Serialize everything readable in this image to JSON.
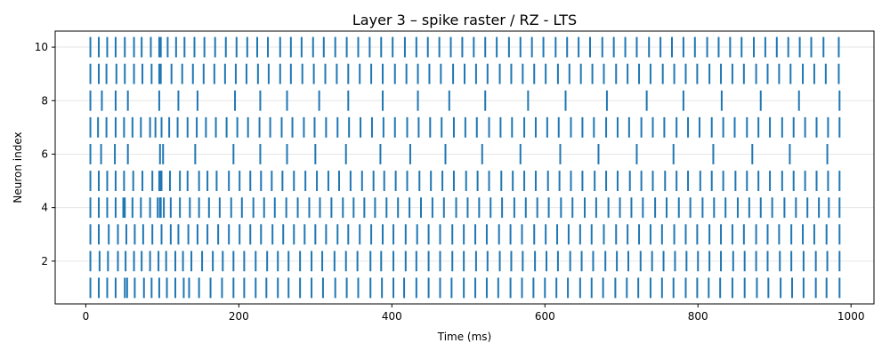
{
  "chart_data": {
    "type": "scatter",
    "subtype": "raster",
    "title": "Layer 3 – spike raster / RZ - LTS",
    "xlabel": "Time (ms)",
    "ylabel": "Neuron index",
    "xlim": [
      -40,
      1030
    ],
    "ylim": [
      0.4,
      10.6
    ],
    "xticks": [
      0,
      200,
      400,
      600,
      800,
      1000
    ],
    "yticks": [
      2,
      4,
      6,
      8,
      10
    ],
    "grid": "horizontal",
    "colors": {
      "spike": "#1f77b4",
      "grid": "#e6e6e6",
      "axis": "#000000"
    },
    "series": [
      {
        "neuron": 1,
        "spikes": [
          6,
          17,
          28,
          39,
          51,
          54,
          64,
          76,
          86,
          96,
          106,
          117,
          128,
          135,
          148,
          163,
          178,
          193,
          207,
          222,
          236,
          251,
          265,
          280,
          295,
          310,
          326,
          341,
          356,
          372,
          387,
          402,
          416,
          432,
          448,
          463,
          478,
          494,
          509,
          524,
          539,
          555,
          570,
          585,
          600,
          615,
          630,
          646,
          661,
          676,
          692,
          707,
          722,
          738,
          753,
          768,
          784,
          799,
          814,
          829,
          845,
          861,
          877,
          892,
          908,
          923,
          938,
          954,
          968,
          985
        ]
      },
      {
        "neuron": 2,
        "spikes": [
          6,
          18,
          29,
          42,
          52,
          63,
          73,
          84,
          95,
          105,
          117,
          127,
          138,
          152,
          166,
          179,
          193,
          207,
          222,
          237,
          251,
          265,
          280,
          295,
          309,
          325,
          340,
          355,
          372,
          386,
          402,
          418,
          432,
          448,
          463,
          479,
          494,
          510,
          525,
          541,
          556,
          571,
          587,
          602,
          617,
          633,
          648,
          663,
          679,
          694,
          709,
          725,
          740,
          755,
          770,
          785,
          800,
          815,
          830,
          846,
          861,
          876,
          891,
          907,
          922,
          938,
          954,
          969,
          985
        ]
      },
      {
        "neuron": 3,
        "spikes": [
          6,
          17,
          30,
          42,
          53,
          64,
          75,
          87,
          99,
          111,
          121,
          134,
          146,
          159,
          173,
          187,
          201,
          215,
          229,
          244,
          258,
          272,
          286,
          300,
          314,
          329,
          343,
          358,
          373,
          388,
          402,
          418,
          433,
          448,
          463,
          479,
          494,
          509,
          524,
          540,
          555,
          570,
          586,
          601,
          616,
          631,
          646,
          661,
          677,
          693,
          708,
          723,
          738,
          753,
          769,
          784,
          799,
          815,
          830,
          845,
          860,
          876,
          891,
          906,
          922,
          937,
          952,
          968,
          985
        ]
      },
      {
        "neuron": 4,
        "spikes": [
          6,
          17,
          28,
          39,
          49,
          51,
          61,
          72,
          84,
          94,
          97,
          98,
          102,
          111,
          123,
          136,
          148,
          161,
          175,
          190,
          204,
          219,
          233,
          247,
          262,
          277,
          292,
          306,
          321,
          336,
          350,
          364,
          378,
          393,
          408,
          423,
          438,
          453,
          468,
          484,
          499,
          514,
          529,
          544,
          560,
          575,
          590,
          605,
          621,
          636,
          652,
          667,
          683,
          698,
          713,
          728,
          744,
          759,
          775,
          790,
          806,
          821,
          836,
          852,
          867,
          882,
          897,
          913,
          928,
          943,
          958,
          971,
          985
        ]
      },
      {
        "neuron": 5,
        "spikes": [
          6,
          17,
          28,
          39,
          50,
          62,
          74,
          87,
          96,
          98,
          99,
          110,
          123,
          133,
          148,
          159,
          171,
          187,
          201,
          215,
          229,
          243,
          257,
          272,
          287,
          302,
          317,
          331,
          346,
          361,
          376,
          390,
          405,
          420,
          436,
          451,
          466,
          481,
          497,
          512,
          527,
          543,
          558,
          573,
          588,
          604,
          619,
          634,
          649,
          665,
          680,
          695,
          711,
          726,
          741,
          757,
          772,
          787,
          803,
          818,
          833,
          849,
          864,
          879,
          894,
          910,
          925,
          940,
          955,
          970,
          985
        ]
      },
      {
        "neuron": 6,
        "spikes": [
          6,
          20,
          38,
          55,
          97,
          101,
          143,
          193,
          228,
          263,
          300,
          340,
          385,
          424,
          470,
          518,
          568,
          620,
          670,
          720,
          768,
          820,
          871,
          920,
          969
        ]
      },
      {
        "neuron": 7,
        "spikes": [
          6,
          16,
          27,
          39,
          50,
          61,
          72,
          84,
          91,
          99,
          109,
          120,
          133,
          145,
          157,
          170,
          184,
          198,
          212,
          227,
          241,
          256,
          270,
          285,
          299,
          314,
          329,
          344,
          359,
          374,
          389,
          404,
          420,
          435,
          450,
          465,
          481,
          496,
          511,
          527,
          542,
          557,
          573,
          588,
          603,
          618,
          634,
          649,
          664,
          680,
          695,
          710,
          726,
          741,
          756,
          772,
          787,
          802,
          818,
          833,
          848,
          864,
          879,
          894,
          910,
          925,
          940,
          955,
          970,
          985
        ]
      },
      {
        "neuron": 8,
        "spikes": [
          6,
          21,
          39,
          55,
          96,
          121,
          146,
          195,
          228,
          263,
          305,
          343,
          388,
          434,
          475,
          522,
          578,
          627,
          681,
          733,
          781,
          831,
          882,
          932,
          985
        ]
      },
      {
        "neuron": 9,
        "spikes": [
          6,
          17,
          27,
          40,
          51,
          63,
          74,
          86,
          96,
          98,
          112,
          126,
          140,
          154,
          168,
          182,
          196,
          210,
          225,
          239,
          254,
          268,
          283,
          298,
          313,
          328,
          343,
          358,
          373,
          388,
          404,
          419,
          434,
          449,
          464,
          480,
          495,
          510,
          525,
          541,
          556,
          571,
          586,
          601,
          617,
          632,
          647,
          662,
          677,
          693,
          708,
          723,
          738,
          754,
          769,
          784,
          799,
          815,
          830,
          845,
          860,
          876,
          891,
          906,
          921,
          937,
          952,
          967,
          984
        ]
      },
      {
        "neuron": 10,
        "spikes": [
          6,
          17,
          28,
          39,
          51,
          63,
          73,
          85,
          96,
          98,
          107,
          118,
          129,
          142,
          155,
          169,
          183,
          197,
          211,
          224,
          238,
          254,
          268,
          282,
          297,
          311,
          326,
          341,
          356,
          371,
          386,
          401,
          417,
          432,
          447,
          462,
          477,
          492,
          507,
          522,
          537,
          553,
          568,
          583,
          598,
          614,
          629,
          644,
          659,
          675,
          690,
          705,
          720,
          736,
          751,
          766,
          781,
          796,
          812,
          827,
          842,
          857,
          873,
          888,
          903,
          918,
          933,
          948,
          964,
          984
        ]
      }
    ]
  }
}
